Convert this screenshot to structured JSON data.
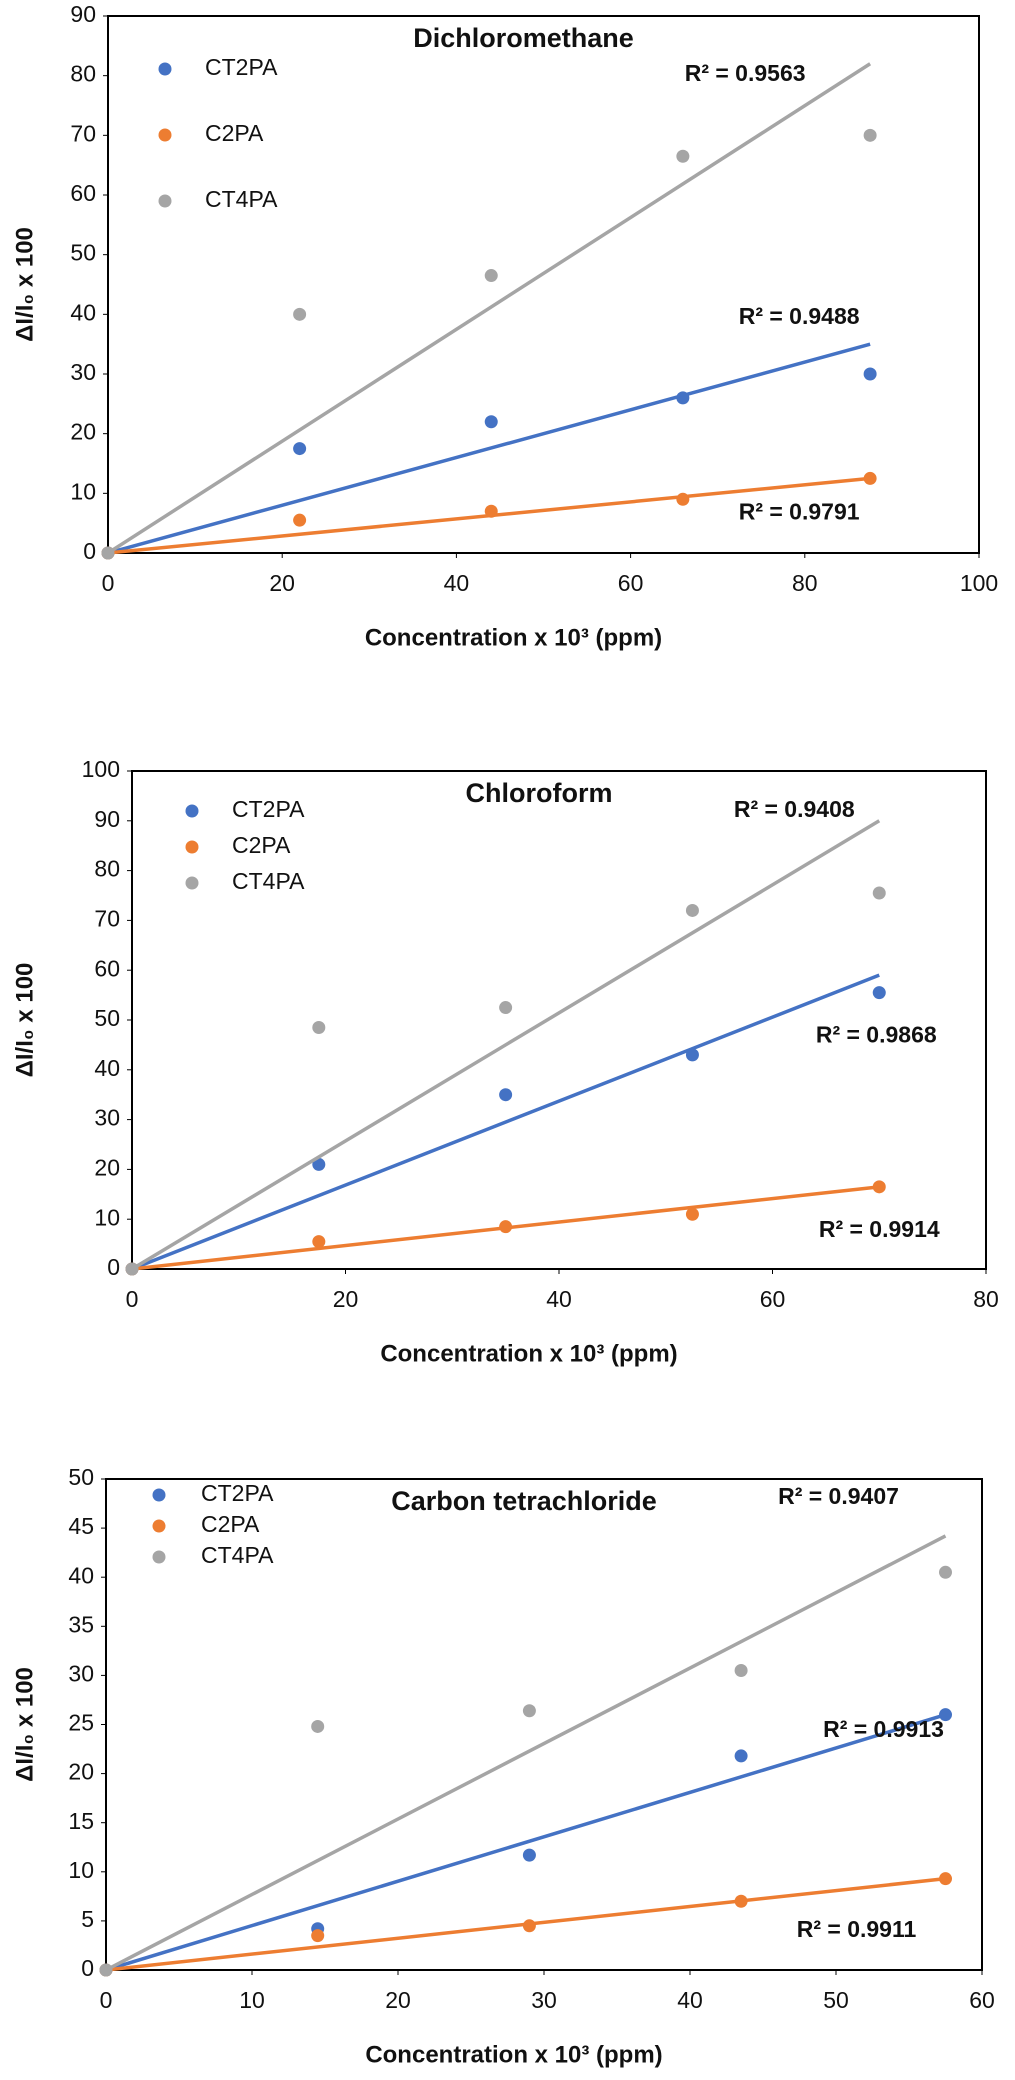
{
  "chart_data": [
    {
      "type": "scatter",
      "title": "Dichloromethane",
      "x_label": "Concentration x 10³ (ppm)",
      "y_label": "ΔI/I₀ x 100",
      "x": [
        0,
        22,
        44,
        66,
        87.5
      ],
      "xlim": [
        0,
        100
      ],
      "xticks": [
        0,
        20,
        40,
        60,
        80,
        100
      ],
      "ylim": [
        0,
        90
      ],
      "yticks": [
        0,
        10,
        20,
        30,
        40,
        50,
        60,
        70,
        80,
        90
      ],
      "series": [
        {
          "name": "CT2PA",
          "color": "#4472c4",
          "values": [
            0,
            17.5,
            22,
            26,
            30
          ],
          "trendline": {
            "x": [
              0,
              87.5
            ],
            "y": [
              0,
              35
            ]
          },
          "r2_label": "R² = 0.9488"
        },
        {
          "name": "C2PA",
          "color": "#ed7d31",
          "values": [
            0,
            5.5,
            7,
            9,
            12.5
          ],
          "trendline": {
            "x": [
              0,
              87.5
            ],
            "y": [
              0,
              12.5
            ]
          },
          "r2_label": "R² = 0.9791"
        },
        {
          "name": "CT4PA",
          "color": "#a5a5a5",
          "values": [
            0,
            40,
            46.5,
            66.5,
            70
          ],
          "trendline": {
            "x": [
              0,
              87.5
            ],
            "y": [
              0,
              82
            ]
          },
          "r2_label": "R² = 0.9563"
        }
      ]
    },
    {
      "type": "scatter",
      "title": "Chloroform",
      "x_label": "Concentration x 10³ (ppm)",
      "y_label": "ΔI/I₀ x 100",
      "x": [
        0,
        17.5,
        35,
        52.5,
        70
      ],
      "xlim": [
        0,
        80
      ],
      "xticks": [
        0,
        20,
        40,
        60,
        80
      ],
      "ylim": [
        0,
        100
      ],
      "yticks": [
        0,
        10,
        20,
        30,
        40,
        50,
        60,
        70,
        80,
        90,
        100
      ],
      "series": [
        {
          "name": "CT2PA",
          "color": "#4472c4",
          "values": [
            0,
            21,
            35,
            43,
            55.5
          ],
          "trendline": {
            "x": [
              0,
              70
            ],
            "y": [
              0,
              59
            ]
          },
          "r2_label": "R² = 0.9868"
        },
        {
          "name": "C2PA",
          "color": "#ed7d31",
          "values": [
            0,
            5.5,
            8.5,
            11,
            16.5
          ],
          "trendline": {
            "x": [
              0,
              70
            ],
            "y": [
              0,
              16.5
            ]
          },
          "r2_label": "R² = 0.9914"
        },
        {
          "name": "CT4PA",
          "color": "#a5a5a5",
          "values": [
            0,
            48.5,
            52.5,
            72,
            75.5
          ],
          "trendline": {
            "x": [
              0,
              70
            ],
            "y": [
              0,
              90
            ]
          },
          "r2_label": "R² = 0.9408"
        }
      ]
    },
    {
      "type": "scatter",
      "title": "Carbon tetrachloride",
      "x_label": "Concentration x 10³ (ppm)",
      "y_label": "ΔI/I₀ x 100",
      "x": [
        0,
        14.5,
        29,
        43.5,
        57.5
      ],
      "xlim": [
        0,
        60
      ],
      "xticks": [
        0,
        10,
        20,
        30,
        40,
        50,
        60
      ],
      "ylim": [
        0,
        50
      ],
      "yticks": [
        0,
        5,
        10,
        15,
        20,
        25,
        30,
        35,
        40,
        45,
        50
      ],
      "series": [
        {
          "name": "CT2PA",
          "color": "#4472c4",
          "values": [
            0,
            4.2,
            11.7,
            21.8,
            26
          ],
          "trendline": {
            "x": [
              0,
              57.5
            ],
            "y": [
              0,
              26
            ]
          },
          "r2_label": "R² = 0.9913"
        },
        {
          "name": "C2PA",
          "color": "#ed7d31",
          "values": [
            0,
            3.5,
            4.5,
            7,
            9.3
          ],
          "trendline": {
            "x": [
              0,
              57.5
            ],
            "y": [
              0,
              9.3
            ]
          },
          "r2_label": "R² = 0.9911"
        },
        {
          "name": "CT4PA",
          "color": "#a5a5a5",
          "values": [
            0,
            24.8,
            26.4,
            30.5,
            40.5
          ],
          "trendline": {
            "x": [
              0,
              57.5
            ],
            "y": [
              0,
              44.2
            ]
          },
          "r2_label": "R² = 0.9407"
        }
      ]
    }
  ]
}
